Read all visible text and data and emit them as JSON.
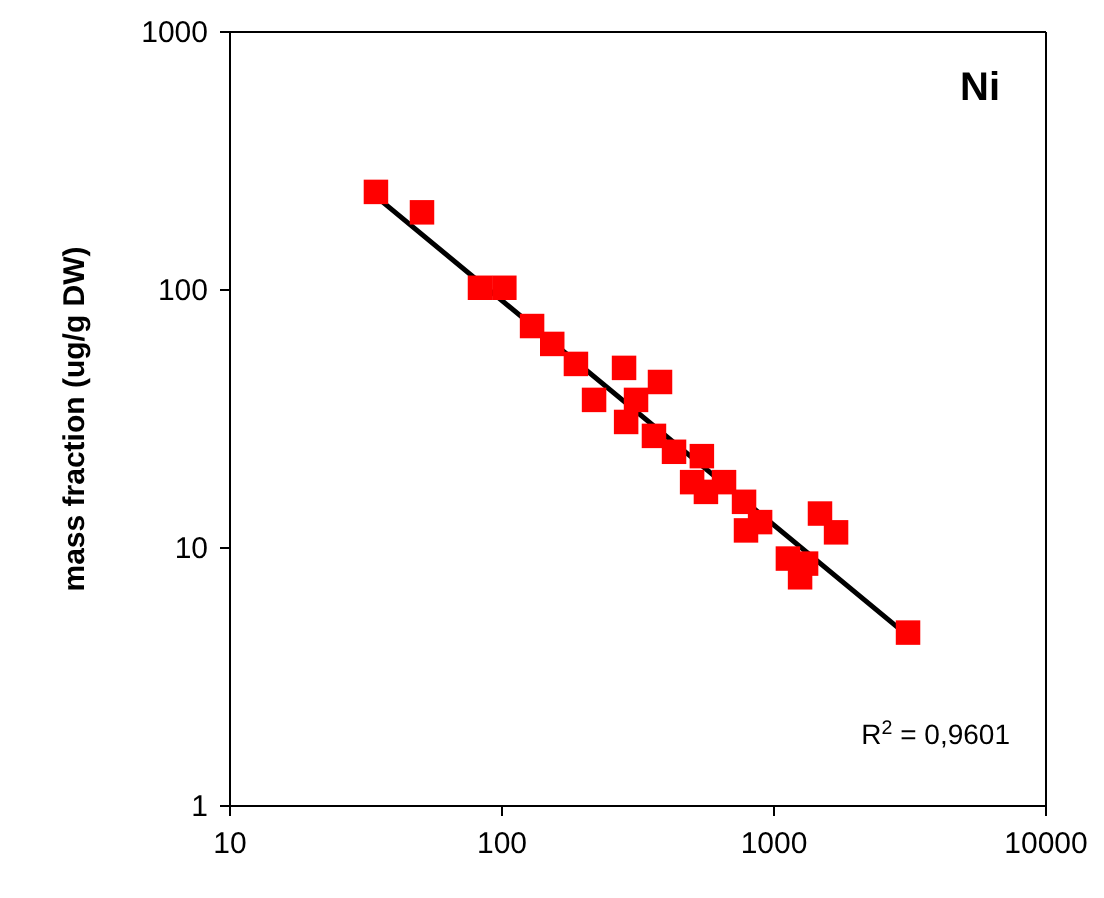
{
  "chart_data": {
    "type": "scatter",
    "ylabel": "mass fraction (ug/g DW)",
    "log": "xy",
    "grid": false,
    "marker": "square",
    "xlim": [
      10,
      10000
    ],
    "xticks": [
      10,
      100,
      1000,
      10000
    ],
    "ylim": [
      1,
      1000
    ],
    "yticks": [
      1,
      10,
      100,
      1000
    ],
    "annotations": [
      "Ni",
      "R$^{2}$ = 0,9601"
    ],
    "series": [
      {
        "color": "#ff0000",
        "x": [
          34.4,
          50.8,
          83,
          102,
          129,
          153,
          187,
          281,
          381,
          218,
          311,
          286,
          362,
          429,
          543,
          500,
          655,
          562,
          776,
          789,
          889,
          1476,
          1691,
          1125,
          1312,
          1247,
          3110
        ],
        "values": [
          240,
          200,
          102,
          102,
          72.5,
          61.8,
          51.7,
          49.9,
          44.0,
          37.5,
          37.5,
          30.8,
          27.2,
          23.6,
          22.7,
          18.0,
          18.0,
          16.5,
          15.1,
          11.7,
          12.6,
          13.6,
          11.5,
          9.1,
          8.7,
          7.7,
          4.7
        ]
      },
      {
        "type": "line",
        "color": "#000000",
        "marker": "none",
        "line_style": "solid",
        "x": [
          35,
          2900
        ],
        "values": [
          227,
          4.85
        ]
      }
    ]
  }
}
